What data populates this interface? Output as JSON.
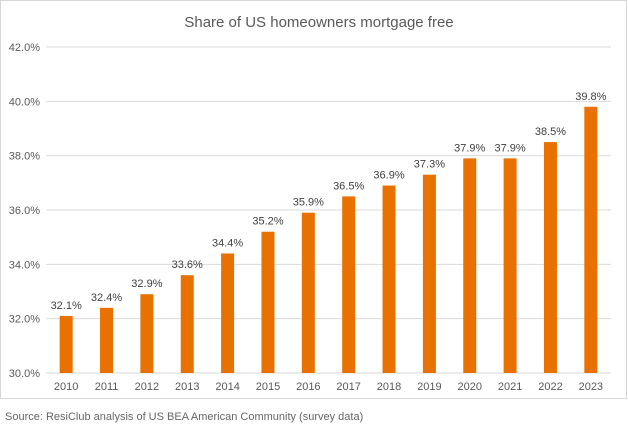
{
  "chart_data": {
    "type": "bar",
    "title": "Share of US homeowners mortgage free",
    "categories": [
      "2010",
      "2011",
      "2012",
      "2013",
      "2014",
      "2015",
      "2016",
      "2017",
      "2018",
      "2019",
      "2020",
      "2021",
      "2022",
      "2023"
    ],
    "values": [
      32.1,
      32.4,
      32.9,
      33.6,
      34.4,
      35.2,
      35.9,
      36.5,
      36.9,
      37.3,
      37.9,
      37.9,
      38.5,
      39.8
    ],
    "data_labels": [
      "32.1%",
      "32.4%",
      "32.9%",
      "33.6%",
      "34.4%",
      "35.2%",
      "35.9%",
      "36.5%",
      "36.9%",
      "37.3%",
      "37.9%",
      "37.9%",
      "38.5%",
      "39.8%"
    ],
    "ylim": [
      30,
      42
    ],
    "yticks": [
      30,
      32,
      34,
      36,
      38,
      40,
      42
    ],
    "ytick_labels": [
      "30.0%",
      "32.0%",
      "34.0%",
      "36.0%",
      "38.0%",
      "40.0%",
      "42.0%"
    ],
    "xlabel": "",
    "ylabel": "",
    "grid": true,
    "bar_color": "#E87100",
    "grid_color": "#d9d9d9"
  },
  "source": "Source: ResiClub analysis of US BEA American Community (survey data)"
}
